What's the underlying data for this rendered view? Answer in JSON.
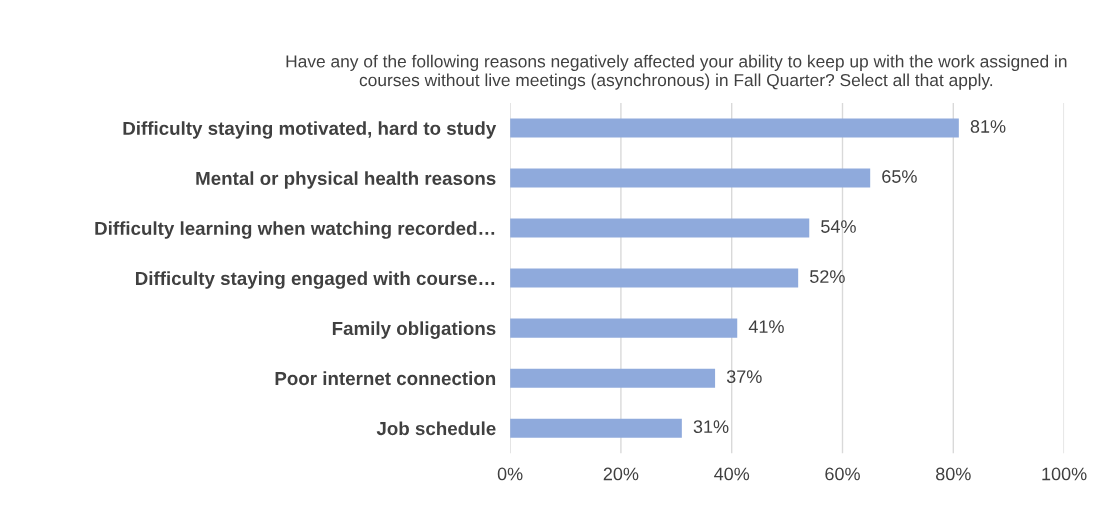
{
  "chart_data": {
    "type": "bar",
    "orientation": "horizontal",
    "title": "Have any of the following reasons negatively affected your ability to keep up with the work assigned in courses without live meetings (asynchronous) in Fall Quarter? Select all that apply.",
    "categories": [
      "Difficulty staying motivated, hard to study",
      "Mental or physical health reasons",
      "Difficulty learning when watching recorded…",
      "Difficulty staying engaged with course…",
      "Family obligations",
      "Poor internet connection",
      "Job schedule"
    ],
    "values": [
      81,
      65,
      54,
      52,
      41,
      37,
      31
    ],
    "value_labels": [
      "81%",
      "65%",
      "54%",
      "52%",
      "41%",
      "37%",
      "31%"
    ],
    "color": "#8faadc",
    "xlim": [
      0,
      100
    ],
    "xticks": [
      {
        "value": 0,
        "label": "0%"
      },
      {
        "value": 20,
        "label": "20%"
      },
      {
        "value": 40,
        "label": "40%"
      },
      {
        "value": 60,
        "label": "60%"
      },
      {
        "value": 80,
        "label": "80%"
      },
      {
        "value": 100,
        "label": "100%"
      }
    ],
    "grid": "x"
  }
}
